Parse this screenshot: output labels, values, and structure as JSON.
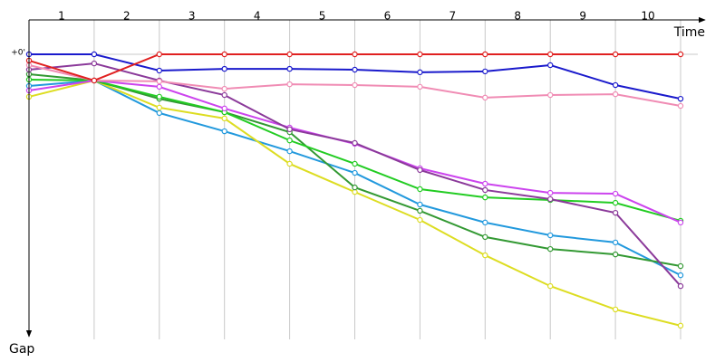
{
  "chart_data": {
    "type": "line",
    "x_label": "Time",
    "y_label": "Gap",
    "categories": [
      "1",
      "2",
      "3",
      "4",
      "5",
      "6",
      "7",
      "8",
      "9",
      "10"
    ],
    "x": [
      0,
      1,
      2,
      3,
      4,
      5,
      6,
      7,
      8,
      9,
      10
    ],
    "xlim": [
      0,
      10.6
    ],
    "xticks": [
      1,
      2,
      3,
      4,
      5,
      6,
      7,
      8,
      9,
      10
    ],
    "ylim": [
      0,
      100
    ],
    "yticks": [
      {
        "value": 0,
        "label": "+0'"
      }
    ],
    "grid": true,
    "series": [
      {
        "color": "#2299dd",
        "values": [
          11.1,
          9.2,
          20.6,
          27,
          34,
          41.6,
          52.7,
          59,
          63.5,
          66,
          77.5
        ]
      },
      {
        "color": "#dddd22",
        "values": [
          14.9,
          9.2,
          18.7,
          22.5,
          38.4,
          48.3,
          58.1,
          70.5,
          81.3,
          89.5,
          95.2
        ]
      },
      {
        "color": "#339933",
        "values": [
          7,
          9.2,
          15.6,
          20.3,
          27.3,
          46.7,
          54.9,
          64.1,
          68.3,
          70.2,
          74.3
        ]
      },
      {
        "color": "#22cc22",
        "values": [
          8.9,
          9.2,
          14.9,
          20.3,
          30.2,
          38.4,
          47.3,
          50.2,
          51.1,
          52.1,
          58.4
        ]
      },
      {
        "color": "#cc44ee",
        "values": [
          12.7,
          9.2,
          11.4,
          19,
          25.7,
          31.4,
          40,
          45.4,
          48.6,
          48.9,
          59
        ]
      },
      {
        "color": "#8b3a9a",
        "values": [
          5.4,
          3.2,
          9.2,
          14.3,
          26.3,
          31.1,
          40.6,
          47.6,
          50.8,
          55.6,
          81.3
        ]
      },
      {
        "color": "#f08cb4",
        "values": [
          3.8,
          9.2,
          9.5,
          12.1,
          10.5,
          10.8,
          11.4,
          15.2,
          14.3,
          14,
          18.1
        ]
      },
      {
        "color": "#1a1acc",
        "values": [
          0,
          0,
          5.7,
          5.1,
          5.1,
          5.4,
          6.3,
          6,
          3.8,
          10.8,
          15.6
        ]
      },
      {
        "color": "#e02020",
        "values": [
          2.2,
          9.2,
          0,
          0,
          0,
          0,
          0,
          0,
          0,
          0,
          0
        ]
      }
    ]
  }
}
